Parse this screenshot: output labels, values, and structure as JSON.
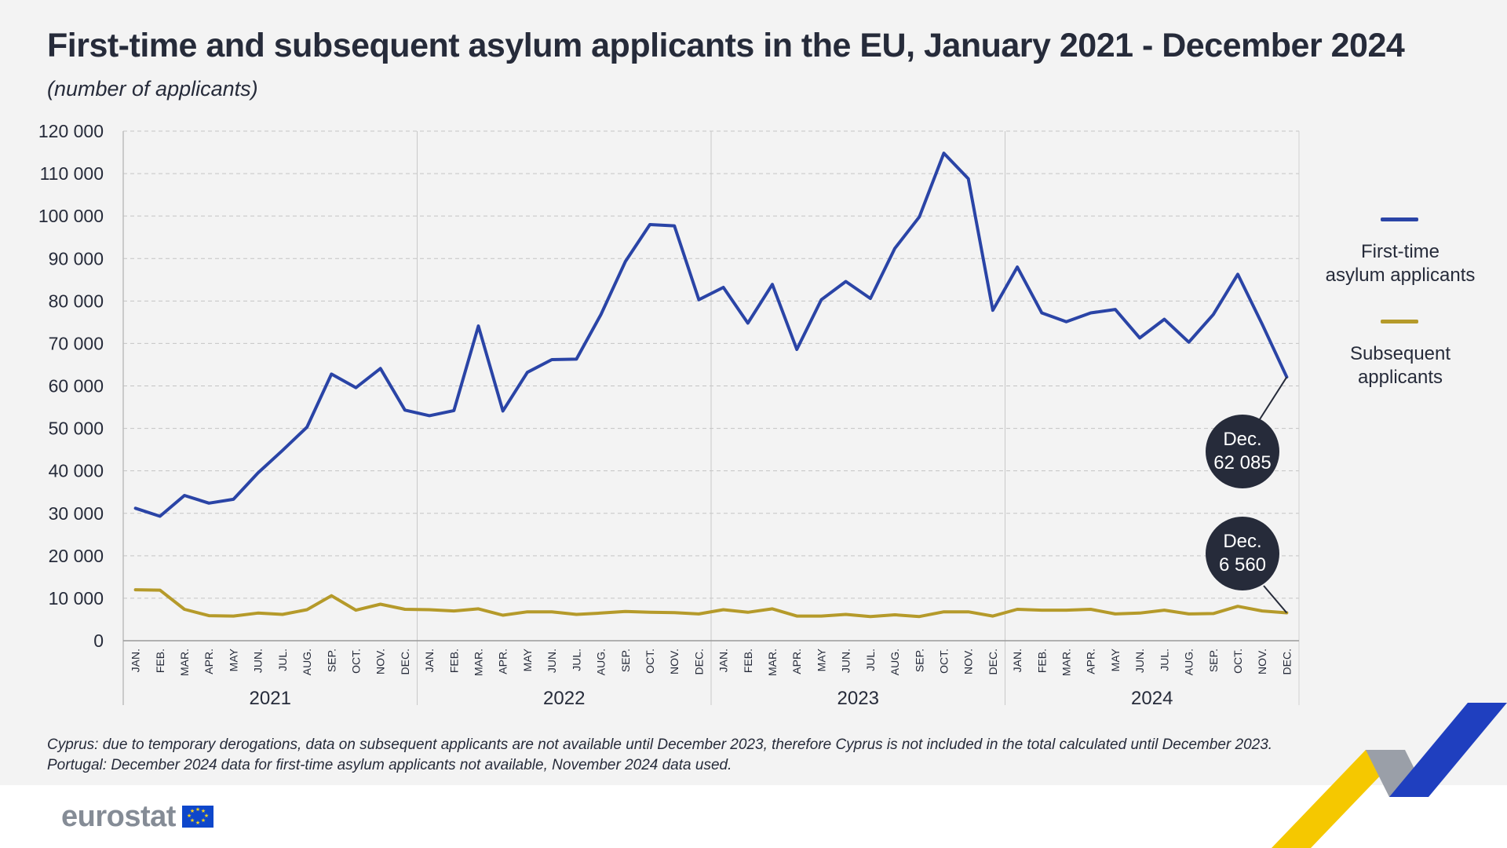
{
  "title": "First-time and subsequent asylum applicants in the EU, January 2021 - December 2024",
  "subtitle": "(number of applicants)",
  "footnote_1": "Cyprus: due to temporary derogations, data on subsequent applicants are not available until December 2023, therefore Cyprus is not included in the total calculated until December 2023.",
  "footnote_2": "Portugal: December 2024 data for first-time asylum applicants not available, November 2024 data used.",
  "logo_text": "eurostat",
  "callouts": {
    "first_time": {
      "label": "Dec.",
      "value": "62 085"
    },
    "subsequent": {
      "label": "Dec.",
      "value": "6 560"
    }
  },
  "legend": [
    {
      "label_line1": "First-time",
      "label_line2": "asylum applicants",
      "color": "#2a44a6"
    },
    {
      "label_line1": "Subsequent",
      "label_line2": "applicants",
      "color": "#b59a2a"
    }
  ],
  "chart_data": {
    "type": "line",
    "ylim": [
      0,
      120000
    ],
    "y_ticks": [
      "0",
      "10 000",
      "20 000",
      "30 000",
      "40 000",
      "50 000",
      "60 000",
      "70 000",
      "80 000",
      "90 000",
      "100 000",
      "110 000",
      "120 000"
    ],
    "month_labels": [
      "JAN.",
      "FEB.",
      "MAR.",
      "APR.",
      "MAY",
      "JUN.",
      "JUL.",
      "AUG.",
      "SEP.",
      "OCT.",
      "NOV.",
      "DEC."
    ],
    "years": [
      "2021",
      "2022",
      "2023",
      "2024"
    ],
    "grid": true,
    "legend_position": "right",
    "series": [
      {
        "name": "First-time asylum applicants",
        "color": "#2a44a6",
        "values": [
          31200,
          29300,
          34200,
          32400,
          33300,
          39500,
          44800,
          50300,
          62800,
          59600,
          64100,
          54300,
          53000,
          54200,
          74100,
          54100,
          63200,
          66200,
          66300,
          76800,
          89300,
          98000,
          97700,
          80300,
          83200,
          74800,
          83900,
          68600,
          80300,
          84600,
          80600,
          92400,
          99800,
          114800,
          108800,
          77800,
          88000,
          77200,
          75100,
          77200,
          78000,
          71300,
          75700,
          70300,
          76800,
          86300,
          74500,
          62085
        ]
      },
      {
        "name": "Subsequent applicants",
        "color": "#b59a2a",
        "values": [
          12000,
          11900,
          7400,
          5900,
          5800,
          6500,
          6200,
          7300,
          10600,
          7200,
          8600,
          7400,
          7300,
          7000,
          7500,
          6000,
          6800,
          6800,
          6200,
          6500,
          6900,
          6700,
          6600,
          6300,
          7300,
          6700,
          7500,
          5800,
          5800,
          6200,
          5700,
          6100,
          5700,
          6800,
          6800,
          5800,
          7400,
          7200,
          7200,
          7400,
          6300,
          6500,
          7200,
          6300,
          6400,
          8100,
          7000,
          6560
        ]
      }
    ]
  }
}
